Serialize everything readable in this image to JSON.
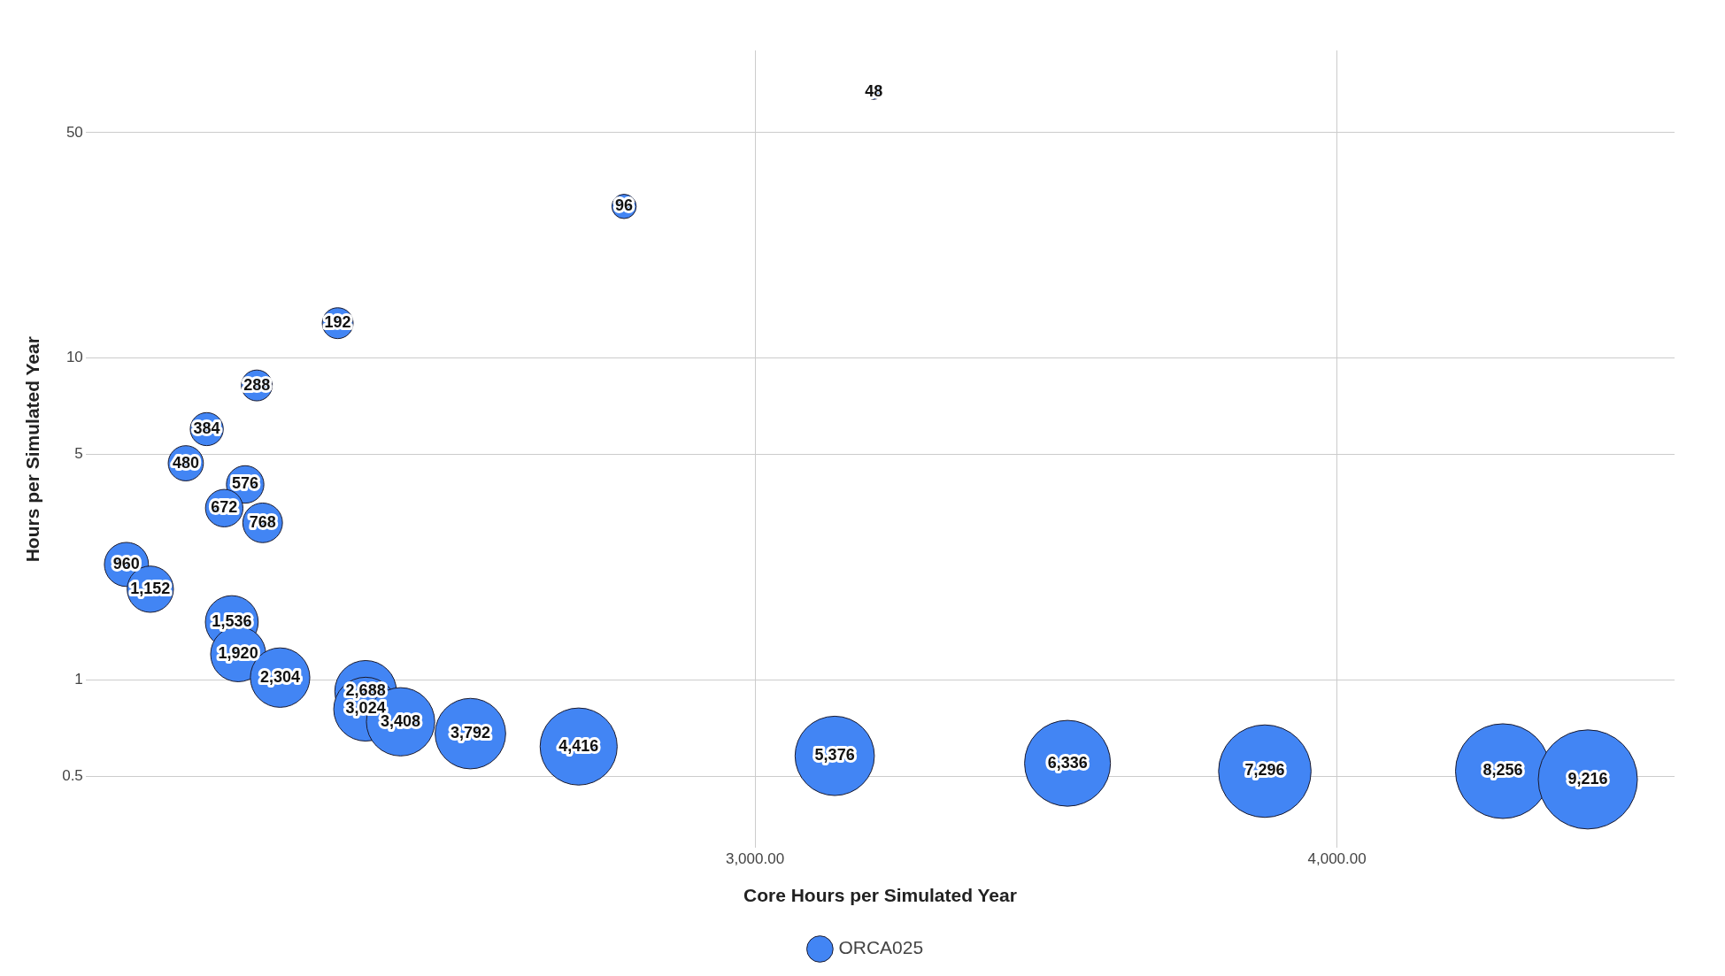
{
  "chart_data": {
    "type": "bubble",
    "xlabel": "Core Hours per Simulated Year",
    "ylabel": "Hours per Simulated Year",
    "xlim": [
      1850,
      4580
    ],
    "xticks": [
      {
        "value": 3000,
        "label": "3,000.00"
      },
      {
        "value": 4000,
        "label": "4,000.00"
      }
    ],
    "ylim": [
      0.31,
      90
    ],
    "yticks": [
      0.5,
      1,
      5,
      10,
      50
    ],
    "log": "y",
    "grid": true,
    "legend": "bottom",
    "marker": "circle",
    "series": [
      {
        "name": "ORCA025",
        "color": "#4285f4",
        "x": [
          3204,
          2775,
          2283,
          2144,
          2058,
          2022,
          2124,
          2088,
          2154,
          1920,
          1961,
          2101,
          2112,
          2184,
          2331,
          2331,
          2391,
          2511,
          2697,
          3137,
          3537,
          3876,
          4285,
          4431
        ],
        "values": [
          67,
          29.5,
          12.8,
          8.2,
          6.0,
          4.7,
          4.04,
          3.41,
          3.07,
          2.28,
          1.91,
          1.51,
          1.2,
          1.015,
          0.92,
          0.81,
          0.74,
          0.68,
          0.62,
          0.58,
          0.55,
          0.52,
          0.52,
          0.49
        ],
        "sizes": [
          0.024,
          0.06,
          0.097,
          0.097,
          0.111,
          0.126,
          0.143,
          0.143,
          0.16,
          0.198,
          0.218,
          0.284,
          0.309,
          0.36,
          0.387,
          0.415,
          0.475,
          0.506,
          0.605,
          0.64,
          0.751,
          0.871,
          0.913,
          1
        ]
      }
    ],
    "annotations": [
      {
        "text": "48",
        "x": 3204,
        "y": 67
      },
      {
        "text": "96",
        "x": 2775,
        "y": 29.5
      },
      {
        "text": "192",
        "x": 2283,
        "y": 12.8
      },
      {
        "text": "288",
        "x": 2144,
        "y": 8.2
      },
      {
        "text": "384",
        "x": 2058,
        "y": 6.0
      },
      {
        "text": "480",
        "x": 2022,
        "y": 4.7
      },
      {
        "text": "576",
        "x": 2124,
        "y": 4.04
      },
      {
        "text": "672",
        "x": 2088,
        "y": 3.41
      },
      {
        "text": "768",
        "x": 2154,
        "y": 3.07
      },
      {
        "text": "960",
        "x": 1920,
        "y": 2.28
      },
      {
        "text": "1,152",
        "x": 1961,
        "y": 1.91
      },
      {
        "text": "1,536",
        "x": 2101,
        "y": 1.51
      },
      {
        "text": "1,920",
        "x": 2112,
        "y": 1.2
      },
      {
        "text": "2,304",
        "x": 2184,
        "y": 1.015
      },
      {
        "text": "2,688",
        "x": 2331,
        "y": 0.92
      },
      {
        "text": "3,024",
        "x": 2331,
        "y": 0.81
      },
      {
        "text": "3,408",
        "x": 2391,
        "y": 0.74
      },
      {
        "text": "3,792",
        "x": 2511,
        "y": 0.68
      },
      {
        "text": "4,416",
        "x": 2697,
        "y": 0.62
      },
      {
        "text": "5,376",
        "x": 3137,
        "y": 0.58
      },
      {
        "text": "6,336",
        "x": 3537,
        "y": 0.55
      },
      {
        "text": "7,296",
        "x": 3876,
        "y": 0.52
      },
      {
        "text": "8,256",
        "x": 4285,
        "y": 0.52
      },
      {
        "text": "9,216",
        "x": 4431,
        "y": 0.49
      }
    ]
  }
}
